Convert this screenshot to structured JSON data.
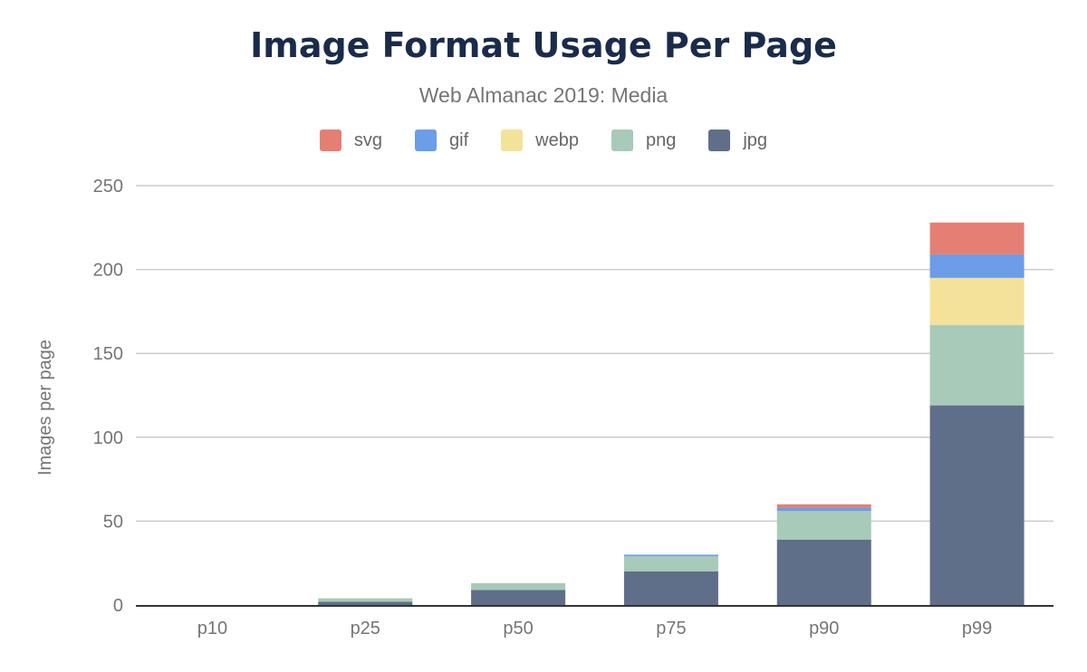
{
  "chart_data": {
    "type": "bar",
    "stacked": true,
    "title": "Image Format Usage Per Page",
    "subtitle": "Web Almanac 2019: Media",
    "xlabel": "",
    "ylabel": "Images per page",
    "ylim": [
      0,
      250
    ],
    "yticks": [
      0,
      50,
      100,
      150,
      200,
      250
    ],
    "grid": true,
    "legend_position": "top",
    "categories": [
      "p10",
      "p25",
      "p50",
      "p75",
      "p90",
      "p99"
    ],
    "series": [
      {
        "name": "jpg",
        "color": "#5f6f8a",
        "values": [
          0,
          2,
          9,
          20,
          39,
          119
        ]
      },
      {
        "name": "png",
        "color": "#a8cab9",
        "values": [
          0,
          2,
          4,
          9,
          17,
          48
        ]
      },
      {
        "name": "webp",
        "color": "#f4e29a",
        "values": [
          0,
          0,
          0,
          0,
          0,
          28
        ]
      },
      {
        "name": "gif",
        "color": "#6b9de8",
        "values": [
          0,
          0,
          0,
          1,
          2,
          14
        ]
      },
      {
        "name": "svg",
        "color": "#e57f73",
        "values": [
          0,
          0,
          0,
          0,
          2,
          19
        ]
      }
    ],
    "legend_order": [
      "svg",
      "gif",
      "webp",
      "png",
      "jpg"
    ]
  }
}
